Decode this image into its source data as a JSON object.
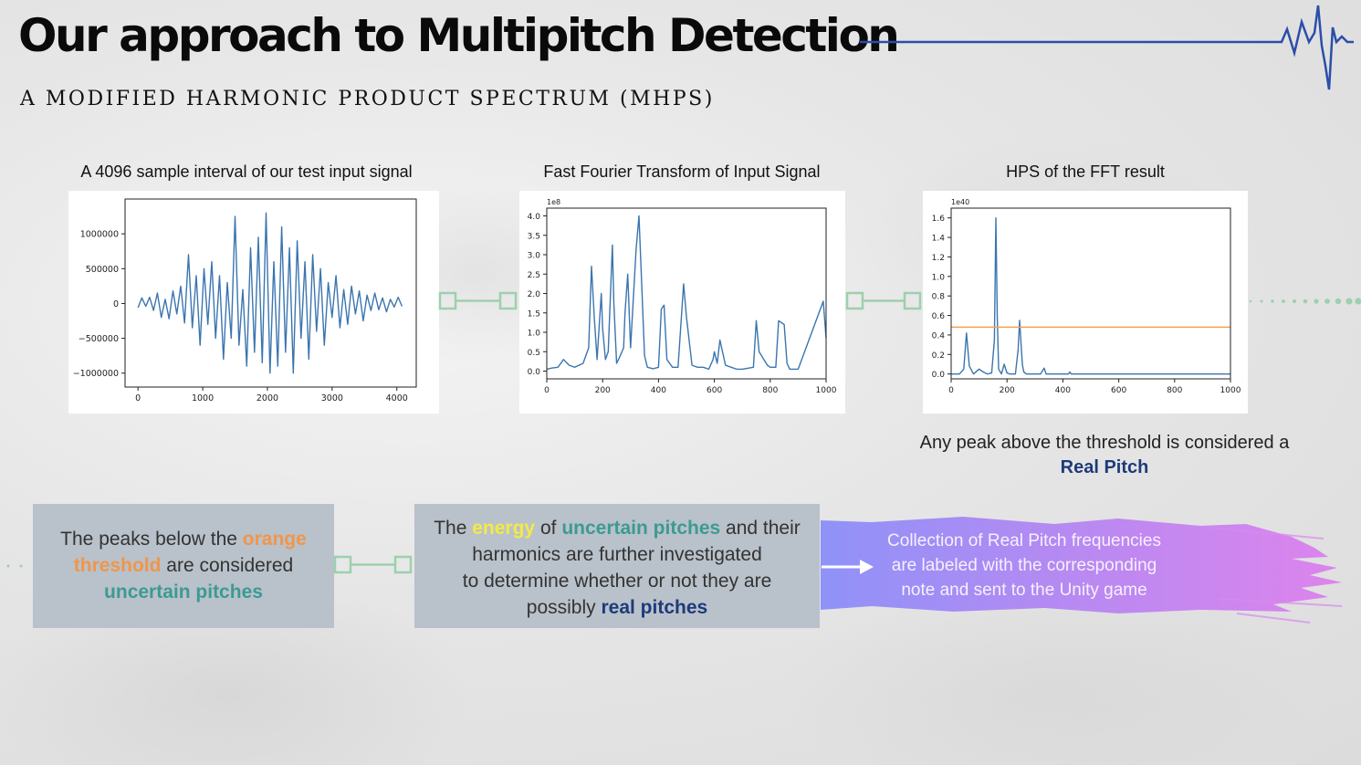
{
  "header": {
    "title": "Our approach to Multipitch Detection",
    "subtitle": "A MODIFIED HARMONIC PRODUCT SPECTRUM (MHPS)"
  },
  "colors": {
    "line_blue": "#2b4ea8",
    "plot_line": "#3b75af",
    "threshold": "#f5a04f",
    "connector": "#9dd0ad",
    "box_bg": "#b9c1ca",
    "orange": "#f0964a",
    "teal": "#3c9a93",
    "yellow": "#f4ea45",
    "navy": "#1d3b7a"
  },
  "icons": {
    "heartbeat": "heartbeat-line-icon",
    "arrow": "right-arrow-icon"
  },
  "captions": {
    "signal": "A 4096 sample interval of our test input signal",
    "fft": "Fast Fourier Transform of Input Signal",
    "hps": "HPS of the FFT result"
  },
  "threshold_note": {
    "line1": "Any peak above the threshold is considered a",
    "line2": "Real Pitch"
  },
  "box1": {
    "t1": "The peaks below the ",
    "t2": "orange",
    "t3": "threshold",
    "t4": " are considered",
    "t5": "uncertain pitches"
  },
  "box2": {
    "t1": "The ",
    "t2": "energy",
    "t3": " of ",
    "t4": "uncertain pitches",
    "t5": " and their",
    "t6": "harmonics are further investigated",
    "t7": "to determine whether or not they are",
    "t8": "possibly ",
    "t9": "real pitches"
  },
  "purple": {
    "line1": "Collection of Real Pitch frequencies",
    "line2": "are labeled with the corresponding",
    "line3": "note and sent to the Unity game"
  },
  "chart_data": [
    {
      "type": "line",
      "xlim": [
        -200,
        4300
      ],
      "ylim": [
        -1200000,
        1500000
      ],
      "xticks": [
        0,
        1000,
        2000,
        3000,
        4000
      ],
      "yticks": [
        -1000000,
        -500000,
        0,
        500000,
        1000000
      ],
      "xtick_labels": [
        "0",
        "1000",
        "2000",
        "3000",
        "4000"
      ],
      "ytick_labels": [
        "−1000000",
        "−500000",
        "0",
        "500000",
        "1000000"
      ],
      "x": [
        0,
        60,
        120,
        180,
        240,
        300,
        360,
        420,
        480,
        540,
        600,
        660,
        720,
        780,
        840,
        900,
        960,
        1020,
        1080,
        1140,
        1200,
        1260,
        1320,
        1380,
        1440,
        1500,
        1560,
        1620,
        1680,
        1740,
        1800,
        1860,
        1920,
        1980,
        2040,
        2100,
        2160,
        2220,
        2280,
        2340,
        2400,
        2460,
        2520,
        2580,
        2640,
        2700,
        2760,
        2820,
        2880,
        2940,
        3000,
        3060,
        3120,
        3180,
        3240,
        3300,
        3360,
        3420,
        3480,
        3540,
        3600,
        3660,
        3720,
        3780,
        3840,
        3900,
        3960,
        4020,
        4080
      ],
      "y": [
        -60000,
        80000,
        -40000,
        90000,
        -100000,
        150000,
        -200000,
        60000,
        -220000,
        180000,
        -150000,
        250000,
        -280000,
        700000,
        -350000,
        400000,
        -600000,
        500000,
        -300000,
        600000,
        -500000,
        400000,
        -800000,
        300000,
        -500000,
        1250000,
        -600000,
        200000,
        -900000,
        800000,
        -700000,
        950000,
        -850000,
        1300000,
        -1000000,
        600000,
        -900000,
        1100000,
        -700000,
        800000,
        -1000000,
        900000,
        -500000,
        600000,
        -800000,
        700000,
        -400000,
        500000,
        -600000,
        300000,
        -200000,
        400000,
        -350000,
        200000,
        -300000,
        250000,
        -150000,
        180000,
        -250000,
        120000,
        -100000,
        150000,
        -90000,
        80000,
        -120000,
        60000,
        -50000,
        90000,
        -40000
      ]
    },
    {
      "type": "line",
      "offset_text": "1e8",
      "xlim": [
        0,
        1000
      ],
      "ylim": [
        -0.2,
        4.2
      ],
      "xticks": [
        0,
        200,
        400,
        600,
        800,
        1000
      ],
      "yticks": [
        0.0,
        0.5,
        1.0,
        1.5,
        2.0,
        2.5,
        3.0,
        3.5,
        4.0
      ],
      "xtick_labels": [
        "0",
        "200",
        "400",
        "600",
        "800",
        "1000"
      ],
      "ytick_labels": [
        "0.0",
        "0.5",
        "1.0",
        "1.5",
        "2.0",
        "2.5",
        "3.0",
        "3.5",
        "4.0"
      ],
      "x": [
        0,
        20,
        40,
        60,
        80,
        100,
        130,
        150,
        160,
        170,
        180,
        195,
        200,
        210,
        220,
        235,
        240,
        250,
        260,
        275,
        280,
        290,
        300,
        320,
        330,
        350,
        360,
        370,
        380,
        400,
        410,
        420,
        430,
        450,
        470,
        490,
        500,
        520,
        540,
        560,
        580,
        595,
        600,
        610,
        620,
        640,
        660,
        680,
        700,
        740,
        750,
        760,
        790,
        800,
        820,
        830,
        850,
        860,
        870,
        900,
        990,
        1000
      ],
      "y": [
        0.05,
        0.08,
        0.1,
        0.3,
        0.15,
        0.1,
        0.2,
        0.6,
        2.7,
        1.4,
        0.3,
        2.0,
        1.1,
        0.3,
        0.5,
        3.25,
        1.8,
        0.2,
        0.35,
        0.6,
        1.5,
        2.5,
        0.6,
        3.15,
        4.0,
        0.4,
        0.1,
        0.08,
        0.06,
        0.1,
        1.6,
        1.7,
        0.3,
        0.1,
        0.1,
        2.25,
        1.4,
        0.15,
        0.1,
        0.1,
        0.05,
        0.3,
        0.5,
        0.2,
        0.8,
        0.15,
        0.1,
        0.05,
        0.05,
        0.1,
        1.3,
        0.5,
        0.15,
        0.1,
        0.1,
        1.3,
        1.2,
        0.2,
        0.05,
        0.05,
        1.8,
        0.85
      ]
    },
    {
      "type": "line",
      "offset_text": "1e40",
      "xlim": [
        0,
        1000
      ],
      "ylim": [
        -0.05,
        1.7
      ],
      "xticks": [
        0,
        200,
        400,
        600,
        800,
        1000
      ],
      "yticks": [
        0.0,
        0.2,
        0.4,
        0.6,
        0.8,
        1.0,
        1.2,
        1.4,
        1.6
      ],
      "xtick_labels": [
        "0",
        "200",
        "400",
        "600",
        "800",
        "1000"
      ],
      "ytick_labels": [
        "0.0",
        "0.2",
        "0.4",
        "0.6",
        "0.8",
        "1.0",
        "1.2",
        "1.4",
        "1.6"
      ],
      "threshold": 0.48,
      "x": [
        0,
        30,
        45,
        55,
        65,
        80,
        100,
        115,
        130,
        145,
        155,
        160,
        165,
        170,
        180,
        190,
        200,
        210,
        230,
        240,
        245,
        255,
        260,
        270,
        320,
        333,
        340,
        420,
        425,
        430,
        1000
      ],
      "y": [
        0,
        0,
        0.05,
        0.42,
        0.08,
        0,
        0.05,
        0.02,
        0,
        0.01,
        0.35,
        1.6,
        0.6,
        0.05,
        0,
        0.1,
        0.01,
        0,
        0,
        0.25,
        0.55,
        0.1,
        0.02,
        0,
        0,
        0.06,
        0,
        0,
        0.02,
        0,
        0
      ]
    }
  ]
}
